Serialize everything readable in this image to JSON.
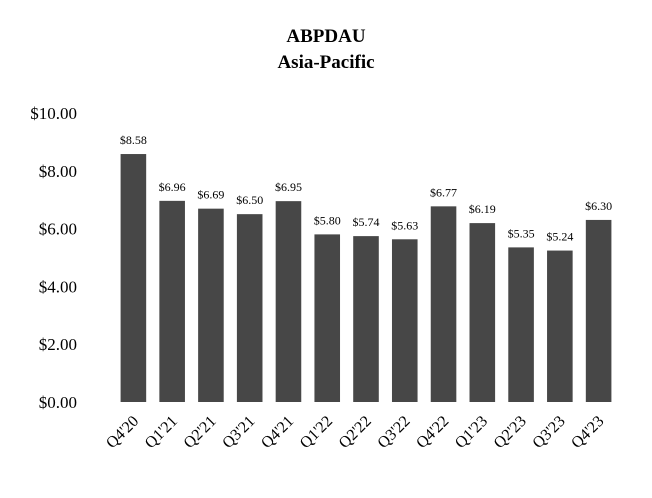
{
  "chart_data": {
    "type": "bar",
    "title": "ABPDAU",
    "subtitle": "Asia-Pacific",
    "xlabel": "",
    "ylabel": "",
    "categories": [
      "Q4'20",
      "Q1'21",
      "Q2'21",
      "Q3'21",
      "Q4'21",
      "Q1'22",
      "Q2'22",
      "Q3'22",
      "Q4'22",
      "Q1'23",
      "Q2'23",
      "Q3'23",
      "Q4'23"
    ],
    "values": [
      8.58,
      6.96,
      6.69,
      6.5,
      6.95,
      5.8,
      5.74,
      5.63,
      6.77,
      6.19,
      5.35,
      5.24,
      6.3
    ],
    "data_labels": [
      "$8.58",
      "$6.96",
      "$6.69",
      "$6.50",
      "$6.95",
      "$5.80",
      "$5.74",
      "$5.63",
      "$6.77",
      "$6.19",
      "$5.35",
      "$5.24",
      "$6.30"
    ],
    "ylim": [
      0,
      10
    ],
    "yticks": [
      0,
      2,
      4,
      6,
      8,
      10
    ],
    "ytick_labels": [
      "$0.00",
      "$2.00",
      "$4.00",
      "$6.00",
      "$8.00",
      "$10.00"
    ],
    "grid": false,
    "legend": "none",
    "bar_color": "#474747"
  }
}
